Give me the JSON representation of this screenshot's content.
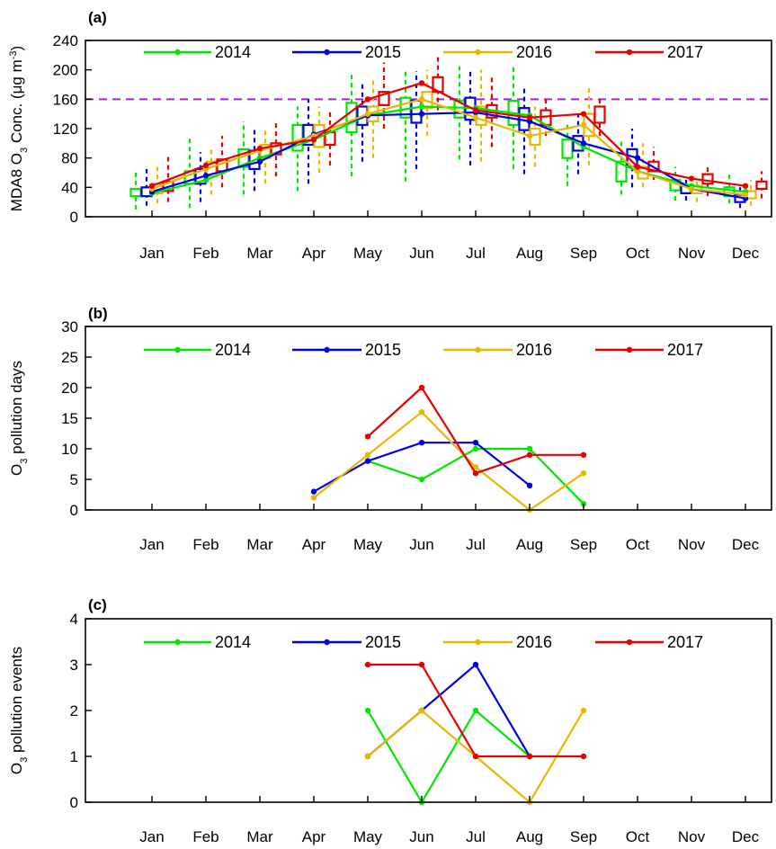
{
  "colors": {
    "2014": "#00e600",
    "2015": "#0000e6",
    "2016": "#e6b800",
    "2017": "#e60000",
    "threshold": "#a020f0"
  },
  "chart_data": [
    {
      "panel_label": "(a)",
      "type": "line",
      "overlay": "boxplot",
      "ylabel_parts": [
        "MDA8 O",
        "3",
        " Conc. (μg m",
        "-3",
        ")"
      ],
      "ylim": [
        0,
        240
      ],
      "yticks": [
        0,
        40,
        80,
        120,
        160,
        200,
        240
      ],
      "categories": [
        "Jan",
        "Feb",
        "Mar",
        "Apr",
        "May",
        "Jun",
        "Jul",
        "Aug",
        "Sep",
        "Oct",
        "Nov",
        "Dec"
      ],
      "threshold": 160,
      "legend_position": "top",
      "series": [
        {
          "name": "2014",
          "values": [
            32,
            50,
            80,
            105,
            138,
            150,
            148,
            138,
            95,
            62,
            42,
            34
          ]
        },
        {
          "name": "2015",
          "values": [
            34,
            56,
            75,
            112,
            138,
            140,
            142,
            130,
            100,
            80,
            38,
            25
          ]
        },
        {
          "name": "2016",
          "values": [
            38,
            65,
            90,
            110,
            140,
            160,
            135,
            110,
            125,
            62,
            38,
            30
          ]
        },
        {
          "name": "2017",
          "values": [
            42,
            70,
            93,
            105,
            160,
            182,
            145,
            135,
            140,
            68,
            52,
            42
          ]
        }
      ],
      "box_stats": [
        {
          "name": "2014",
          "boxes": [
            [
              10,
              28,
              32,
              38,
              65
            ],
            [
              12,
              45,
              50,
              62,
              108
            ],
            [
              30,
              68,
              80,
              92,
              130
            ],
            [
              35,
              90,
              105,
              125,
              150
            ],
            [
              55,
              115,
              138,
              155,
              195
            ],
            [
              48,
              135,
              150,
              162,
              200
            ],
            [
              78,
              135,
              148,
              158,
              205
            ],
            [
              65,
              125,
              138,
              158,
              205
            ],
            [
              42,
              80,
              95,
              105,
              130
            ],
            [
              30,
              48,
              62,
              75,
              105
            ],
            [
              22,
              36,
              42,
              50,
              68
            ],
            [
              18,
              28,
              34,
              40,
              60
            ]
          ]
        },
        {
          "name": "2015",
          "boxes": [
            [
              15,
              28,
              34,
              40,
              65
            ],
            [
              20,
              45,
              56,
              65,
              88
            ],
            [
              35,
              65,
              75,
              90,
              118
            ],
            [
              45,
              98,
              112,
              125,
              160
            ],
            [
              75,
              125,
              138,
              150,
              185
            ],
            [
              65,
              128,
              140,
              158,
              198
            ],
            [
              70,
              132,
              142,
              162,
              200
            ],
            [
              58,
              118,
              130,
              148,
              175
            ],
            [
              58,
              90,
              100,
              110,
              140
            ],
            [
              40,
              68,
              80,
              92,
              120
            ],
            [
              22,
              32,
              38,
              42,
              52
            ],
            [
              12,
              20,
              25,
              30,
              45
            ]
          ]
        },
        {
          "name": "2016",
          "boxes": [
            [
              18,
              32,
              38,
              45,
              68
            ],
            [
              30,
              55,
              65,
              75,
              95
            ],
            [
              45,
              80,
              90,
              98,
              120
            ],
            [
              60,
              95,
              110,
              125,
              150
            ],
            [
              80,
              130,
              140,
              150,
              190
            ],
            [
              110,
              148,
              160,
              170,
              200
            ],
            [
              75,
              125,
              135,
              150,
              200
            ],
            [
              68,
              98,
              110,
              120,
              150
            ],
            [
              70,
              110,
              125,
              140,
              175
            ],
            [
              40,
              52,
              62,
              68,
              100
            ],
            [
              20,
              32,
              38,
              42,
              50
            ],
            [
              15,
              25,
              30,
              35,
              50
            ]
          ]
        },
        {
          "name": "2017",
          "boxes": [
            [
              20,
              35,
              42,
              48,
              82
            ],
            [
              40,
              62,
              70,
              78,
              110
            ],
            [
              55,
              85,
              93,
              100,
              130
            ],
            [
              70,
              98,
              105,
              115,
              145
            ],
            [
              120,
              152,
              160,
              170,
              210
            ],
            [
              145,
              170,
              182,
              190,
              218
            ],
            [
              95,
              135,
              145,
              152,
              190
            ],
            [
              110,
              125,
              135,
              145,
              165
            ],
            [
              110,
              128,
              140,
              150,
              165
            ],
            [
              50,
              62,
              68,
              75,
              95
            ],
            [
              28,
              45,
              52,
              58,
              72
            ],
            [
              25,
              38,
              42,
              48,
              62
            ]
          ]
        }
      ]
    },
    {
      "panel_label": "(b)",
      "type": "line",
      "ylabel_parts": [
        "O",
        "3",
        " pollution days"
      ],
      "ylim": [
        0,
        30
      ],
      "yticks": [
        0,
        5,
        10,
        15,
        20,
        25,
        30
      ],
      "categories": [
        "Jan",
        "Feb",
        "Mar",
        "Apr",
        "May",
        "Jun",
        "Jul",
        "Aug",
        "Sep",
        "Oct",
        "Nov",
        "Dec"
      ],
      "legend_position": "top",
      "series": [
        {
          "name": "2014",
          "values": [
            null,
            null,
            null,
            null,
            8,
            5,
            10,
            10,
            1,
            null,
            null,
            null
          ]
        },
        {
          "name": "2015",
          "values": [
            null,
            null,
            null,
            3,
            8,
            11,
            11,
            4,
            null,
            null,
            null,
            null
          ]
        },
        {
          "name": "2016",
          "values": [
            null,
            null,
            null,
            2,
            9,
            16,
            7,
            0,
            6,
            null,
            null,
            null
          ]
        },
        {
          "name": "2017",
          "values": [
            null,
            null,
            null,
            null,
            12,
            20,
            6,
            9,
            9,
            null,
            null,
            null
          ]
        }
      ]
    },
    {
      "panel_label": "(c)",
      "type": "line",
      "ylabel_parts": [
        "O",
        "3",
        " pollution events"
      ],
      "ylim": [
        0,
        4
      ],
      "yticks": [
        0,
        1,
        2,
        3,
        4
      ],
      "categories": [
        "Jan",
        "Feb",
        "Mar",
        "Apr",
        "May",
        "Jun",
        "Jul",
        "Aug",
        "Sep",
        "Oct",
        "Nov",
        "Dec"
      ],
      "legend_position": "top",
      "series": [
        {
          "name": "2014",
          "values": [
            null,
            null,
            null,
            null,
            2,
            0,
            2,
            1,
            null,
            null,
            null,
            null
          ]
        },
        {
          "name": "2015",
          "values": [
            null,
            null,
            null,
            null,
            1,
            2,
            3,
            1,
            null,
            null,
            null,
            null
          ]
        },
        {
          "name": "2016",
          "values": [
            null,
            null,
            null,
            null,
            1,
            2,
            1,
            0,
            2,
            null,
            null,
            null
          ]
        },
        {
          "name": "2017",
          "values": [
            null,
            null,
            null,
            null,
            3,
            3,
            1,
            1,
            1,
            null,
            null,
            null
          ]
        }
      ]
    }
  ]
}
